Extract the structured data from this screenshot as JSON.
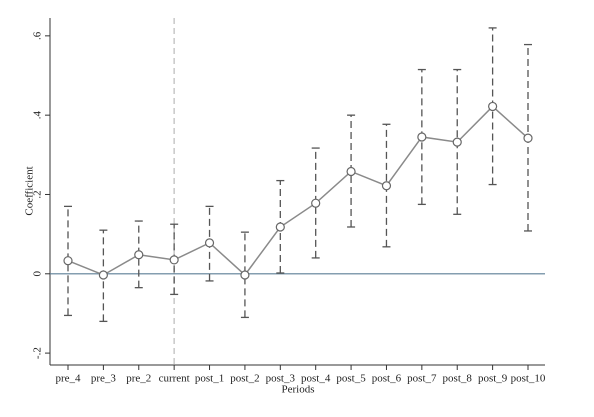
{
  "chart_data": {
    "type": "errorbar-line",
    "x_label": "Periods",
    "y_label": "Coefficient",
    "categories": [
      "pre_4",
      "pre_3",
      "pre_2",
      "current",
      "post_1",
      "post_2",
      "post_3",
      "post_4",
      "post_5",
      "post_6",
      "post_7",
      "post_8",
      "post_9",
      "post_10"
    ],
    "values": [
      0.033,
      -0.003,
      0.048,
      0.035,
      0.078,
      -0.003,
      0.118,
      0.178,
      0.258,
      0.222,
      0.345,
      0.332,
      0.422,
      0.342
    ],
    "ci_lower": [
      -0.105,
      -0.12,
      -0.035,
      -0.052,
      -0.018,
      -0.11,
      0.002,
      0.04,
      0.118,
      0.068,
      0.175,
      0.15,
      0.225,
      0.108
    ],
    "ci_upper": [
      0.17,
      0.11,
      0.133,
      0.125,
      0.17,
      0.105,
      0.235,
      0.317,
      0.4,
      0.377,
      0.515,
      0.515,
      0.62,
      0.578
    ],
    "color": "#8a8a8a",
    "ci_color": "#555555",
    "hline": 0,
    "hline_color": "#5b7e95",
    "vline_index": 3,
    "vline_color": "#c8c8c8",
    "ylim": [
      -0.23,
      0.645
    ],
    "yticks": [
      {
        "value": -0.2,
        "label": "-.2"
      },
      0,
      {
        "value": 0.2,
        "label": ".2"
      },
      {
        "value": 0.4,
        "label": ".4"
      },
      {
        "value": 0.6,
        "label": ".6"
      }
    ]
  }
}
